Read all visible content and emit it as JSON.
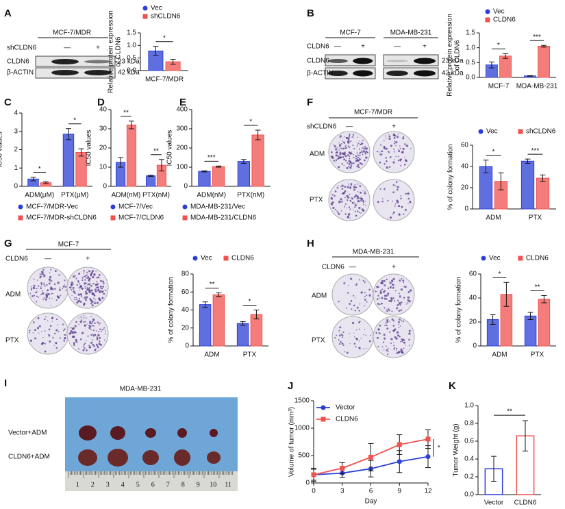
{
  "panel_labels": [
    "A",
    "B",
    "C",
    "D",
    "E",
    "F",
    "G",
    "H",
    "I",
    "J",
    "K"
  ],
  "blot_a": {
    "title": "MCF-7/MDR",
    "condition": "shCLDN6",
    "lanes": [
      "—",
      "+"
    ],
    "rows": [
      "CLDN6",
      "β-ACTIN"
    ],
    "sizes": [
      "23 kDa",
      "42 kDa"
    ]
  },
  "blot_b": {
    "groups": [
      "MCF-7",
      "MDA-MB-231"
    ],
    "condition": "CLDN6",
    "lanes": [
      "—",
      "+",
      "—",
      "+"
    ],
    "rows": [
      "CLDN6",
      "β-ACTIN"
    ],
    "sizes": [
      "23 kDa",
      "42 kDa"
    ]
  },
  "colony_f": {
    "title": "MCF-7/MDR",
    "condition": "shCLDN6",
    "lanes": [
      "—",
      "+"
    ],
    "rows": [
      "ADM",
      "PTX"
    ]
  },
  "colony_g": {
    "title": "MCF-7",
    "condition": "CLDN6",
    "lanes": [
      "—",
      "+"
    ],
    "rows": [
      "ADM",
      "PTX"
    ]
  },
  "colony_h": {
    "title": "MDA-MB-231",
    "condition": "CLDN6",
    "lanes": [
      "—",
      "+"
    ],
    "rows": [
      "ADM",
      "PTX"
    ]
  },
  "tumor_i": {
    "title": "MDA-MB-231",
    "rows": [
      "Vector+ADM",
      "CLDN6+ADM"
    ],
    "ruler": [
      "1",
      "2",
      "3",
      "4",
      "5",
      "6",
      "7",
      "8",
      "9",
      "10",
      "11"
    ]
  },
  "chart_data": [
    {
      "type": "bar",
      "ylabel": [
        "Relative protein expression",
        "of CLDN6"
      ],
      "categories": [
        "MCF-7/MDR"
      ],
      "series": [
        {
          "name": "Vec",
          "color": "#2b3fd6",
          "values": [
            0.78
          ],
          "errors": [
            0.18
          ]
        },
        {
          "name": "shCLDN6",
          "color": "#f0524f",
          "values": [
            0.35
          ],
          "errors": [
            0.1
          ]
        }
      ],
      "significance": [
        "*"
      ],
      "ylim": [
        0,
        1.5
      ],
      "yticks": [
        {
          "value": 0,
          "label": "0.0"
        },
        {
          "value": 0.5,
          "label": "0.5"
        },
        {
          "value": 1,
          "label": "1.0"
        },
        {
          "value": 1.5,
          "label": "1.5"
        }
      ]
    },
    {
      "type": "bar",
      "ylabel": [
        "Relative protein expression",
        "of CLDN6"
      ],
      "categories": [
        "MCF-7",
        "MDA-MB-231"
      ],
      "series": [
        {
          "name": "Vec",
          "color": "#2b3fd6",
          "values": [
            0.42,
            0.05
          ],
          "errors": [
            0.1,
            0.01
          ]
        },
        {
          "name": "CLDN6",
          "color": "#f0524f",
          "values": [
            0.72,
            1.05
          ],
          "errors": [
            0.08,
            0.03
          ]
        }
      ],
      "significance": [
        "*",
        "***"
      ],
      "ylim": [
        0,
        1.5
      ],
      "yticks": [
        {
          "value": 0,
          "label": "0.0"
        },
        {
          "value": 0.5,
          "label": "0.5"
        },
        {
          "value": 1,
          "label": "1.0"
        },
        {
          "value": 1.5,
          "label": "1.5"
        }
      ]
    },
    {
      "type": "bar",
      "ylabel": [
        "IC50 values"
      ],
      "categories": [
        "ADM(μM)",
        "PTX(μM)"
      ],
      "series": [
        {
          "name": "MCF-7/MDR-Vec",
          "color": "#2b3fd6",
          "values": [
            0.4,
            2.85
          ],
          "errors": [
            0.1,
            0.3
          ]
        },
        {
          "name": "MCF-7/MDR-shCLDN6",
          "color": "#f0524f",
          "values": [
            0.2,
            1.85
          ],
          "errors": [
            0.05,
            0.2
          ]
        }
      ],
      "significance": [
        "*",
        "*"
      ],
      "ylim": [
        0,
        4
      ],
      "yticks": [
        0,
        1,
        2,
        3,
        4
      ]
    },
    {
      "type": "bar",
      "ylabel": [
        "IC50 values"
      ],
      "categories": [
        "ADM(nM)",
        "PTX(nM)"
      ],
      "series": [
        {
          "name": "MCF-7/Vec",
          "color": "#2b3fd6",
          "values": [
            12.5,
            5.5
          ],
          "errors": [
            2.5,
            0.3
          ]
        },
        {
          "name": "MCF-7/CLDN6",
          "color": "#f0524f",
          "values": [
            32,
            11
          ],
          "errors": [
            2,
            3
          ]
        }
      ],
      "significance": [
        "**",
        "**"
      ],
      "ylim": [
        0,
        40
      ],
      "yticks": [
        0,
        10,
        20,
        30,
        40
      ]
    },
    {
      "type": "bar",
      "ylabel": [
        "IC50 values"
      ],
      "categories": [
        "ADM(nM)",
        "PTX(nM)"
      ],
      "series": [
        {
          "name": "MDA-MB-231/Vec",
          "color": "#2b3fd6",
          "values": [
            78,
            130
          ],
          "errors": [
            3,
            10
          ]
        },
        {
          "name": "MDA-MB-231/CLDN6",
          "color": "#f0524f",
          "values": [
            103,
            268
          ],
          "errors": [
            3,
            25
          ]
        }
      ],
      "significance": [
        "***",
        "*"
      ],
      "ylim": [
        0,
        400
      ],
      "yticks": [
        0,
        100,
        200,
        300,
        400
      ]
    },
    {
      "type": "bar",
      "ylabel": [
        "% of colony formation"
      ],
      "categories": [
        "ADM",
        "PTX"
      ],
      "series": [
        {
          "name": "Vec",
          "color": "#2b3fd6",
          "values": [
            40,
            45
          ],
          "errors": [
            6,
            2
          ]
        },
        {
          "name": "shCLDN6",
          "color": "#f0524f",
          "values": [
            26,
            29
          ],
          "errors": [
            8,
            3
          ]
        }
      ],
      "significance": [
        "*",
        "***"
      ],
      "ylim": [
        0,
        60
      ],
      "yticks": [
        0,
        20,
        40,
        60
      ]
    },
    {
      "type": "bar",
      "ylabel": [
        "% of colony formation"
      ],
      "categories": [
        "ADM",
        "PTX"
      ],
      "series": [
        {
          "name": "Vec",
          "color": "#2b3fd6",
          "values": [
            46,
            25
          ],
          "errors": [
            3,
            2
          ]
        },
        {
          "name": "CLDN6",
          "color": "#f0524f",
          "values": [
            57,
            35
          ],
          "errors": [
            2,
            5
          ]
        }
      ],
      "significance": [
        "**",
        "*"
      ],
      "ylim": [
        0,
        80
      ],
      "yticks": [
        0,
        20,
        40,
        60,
        80
      ]
    },
    {
      "type": "bar",
      "ylabel": [
        "% of colony formation"
      ],
      "categories": [
        "ADM",
        "PTX"
      ],
      "series": [
        {
          "name": "Vec",
          "color": "#2b3fd6",
          "values": [
            22,
            25
          ],
          "errors": [
            4,
            3
          ]
        },
        {
          "name": "CLDN6",
          "color": "#f0524f",
          "values": [
            43,
            39
          ],
          "errors": [
            10,
            3
          ]
        }
      ],
      "significance": [
        "*",
        "**"
      ],
      "ylim": [
        0,
        60
      ],
      "yticks": [
        0,
        20,
        40,
        60
      ]
    },
    {
      "type": "line",
      "ylabel": [
        "Volume of tumor (mm³)"
      ],
      "xlabel": "Day",
      "x": [
        0,
        3,
        6,
        9,
        12
      ],
      "series": [
        {
          "name": "Vector",
          "color": "#2b3fd6",
          "values": [
            150,
            180,
            260,
            390,
            480
          ],
          "errors": [
            120,
            80,
            150,
            200,
            200
          ]
        },
        {
          "name": "CLDN6",
          "color": "#f0524f",
          "values": [
            150,
            270,
            470,
            700,
            800
          ],
          "errors": [
            100,
            100,
            250,
            180,
            170
          ]
        }
      ],
      "significance": [
        "*"
      ],
      "xlim": [
        0,
        12
      ],
      "xticks": [
        0,
        3,
        6,
        9,
        12
      ],
      "ylim": [
        0,
        1500
      ],
      "yticks": [
        0,
        500,
        1000,
        1500
      ]
    },
    {
      "type": "outline_bar",
      "ylabel": [
        "Tumor Weight (g)"
      ],
      "categories": [
        "Vector",
        "CLDN6"
      ],
      "values": [
        0.29,
        0.66
      ],
      "errors": [
        0.14,
        0.17
      ],
      "colors": [
        "#2b3fd6",
        "#f0524f"
      ],
      "significance": [
        "**"
      ],
      "ylim": [
        0,
        1
      ],
      "yticks": [
        {
          "value": 0,
          "label": "0.0"
        },
        {
          "value": 0.2,
          "label": "0.2"
        },
        {
          "value": 0.4,
          "label": "0.4"
        },
        {
          "value": 0.6,
          "label": "0.6"
        },
        {
          "value": 0.8,
          "label": "0.8"
        },
        {
          "value": 1,
          "label": "1.0"
        }
      ]
    }
  ]
}
